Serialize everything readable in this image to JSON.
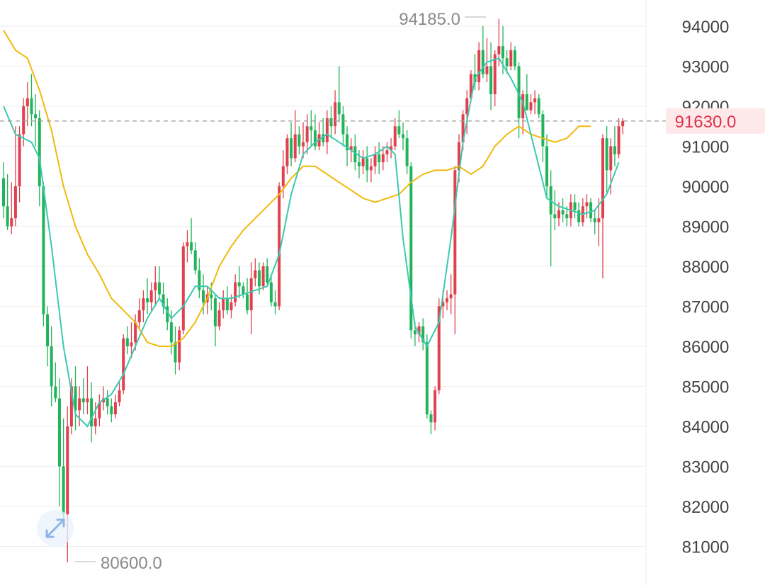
{
  "colors": {
    "up": "#e0414f",
    "down": "#22b45a",
    "ma_fast": "#3cc9b0",
    "ma_slow": "#f0b90b",
    "grid": "#eeeeee",
    "current_line": "#9a9a9a",
    "price_tag_bg": "#fde8ea",
    "price_tag_text": "#e0334a",
    "fullscreen_icon_bg": "#eaf2fc",
    "fullscreen_icon": "#8fb4e6"
  },
  "icons": {
    "fullscreen": "expand-arrows-icon"
  },
  "chart_data": {
    "type": "candlestick",
    "title": "",
    "xlabel": "",
    "ylabel": "",
    "ylim": [
      80500,
      94500
    ],
    "y_ticks": [
      "94000",
      "93000",
      "92000",
      "91000",
      "90000",
      "89000",
      "88000",
      "87000",
      "86000",
      "85000",
      "84000",
      "83000",
      "82000",
      "81000"
    ],
    "grid": true,
    "current_price": 91630,
    "current_price_label": "91630.0",
    "high_label": "94185.0",
    "low_label": "80600.0",
    "high_value": 94185,
    "low_value": 80600,
    "candles": [
      [
        90200,
        90600,
        89200,
        89500
      ],
      [
        89500,
        90300,
        88900,
        89000
      ],
      [
        89000,
        90100,
        88800,
        89200
      ],
      [
        89200,
        91500,
        89000,
        90000
      ],
      [
        90000,
        91500,
        89600,
        91300
      ],
      [
        91300,
        92200,
        91000,
        92000
      ],
      [
        92000,
        92600,
        91500,
        92200
      ],
      [
        92200,
        92800,
        91500,
        91800
      ],
      [
        91800,
        92300,
        91000,
        91700
      ],
      [
        91700,
        91900,
        89500,
        90000
      ],
      [
        90000,
        90100,
        86500,
        86800
      ],
      [
        86800,
        87000,
        85500,
        86000
      ],
      [
        86000,
        86500,
        84500,
        85000
      ],
      [
        85000,
        85600,
        84600,
        84700
      ],
      [
        84700,
        85200,
        82000,
        83000
      ],
      [
        83000,
        84200,
        81500,
        81800
      ],
      [
        81800,
        84500,
        80600,
        84000
      ],
      [
        84000,
        85200,
        83800,
        85000
      ],
      [
        85000,
        85500,
        83900,
        84400
      ],
      [
        84400,
        85000,
        84000,
        84700
      ],
      [
        84700,
        85200,
        84300,
        84600
      ],
      [
        84600,
        85500,
        84300,
        84700
      ],
      [
        84700,
        85100,
        83600,
        84000
      ],
      [
        84000,
        84600,
        83800,
        84200
      ],
      [
        84200,
        84800,
        84000,
        84600
      ],
      [
        84600,
        85000,
        84400,
        84700
      ],
      [
        84700,
        84900,
        84300,
        84500
      ],
      [
        84500,
        84700,
        84100,
        84300
      ],
      [
        84300,
        84800,
        84200,
        84600
      ],
      [
        84600,
        85100,
        84500,
        84900
      ],
      [
        84900,
        86300,
        84800,
        86200
      ],
      [
        86200,
        86500,
        85800,
        86000
      ],
      [
        86000,
        86600,
        85700,
        86100
      ],
      [
        86100,
        86800,
        85900,
        86600
      ],
      [
        86600,
        87200,
        86400,
        86900
      ],
      [
        86900,
        87400,
        86600,
        87200
      ],
      [
        87200,
        87700,
        86800,
        87100
      ],
      [
        87100,
        87600,
        86900,
        87400
      ],
      [
        87400,
        88000,
        87000,
        87600
      ],
      [
        87600,
        88000,
        87200,
        87300
      ],
      [
        87300,
        87600,
        86800,
        87000
      ],
      [
        87000,
        87200,
        86400,
        86600
      ],
      [
        86600,
        86900,
        85800,
        86100
      ],
      [
        86100,
        86500,
        85300,
        85600
      ],
      [
        85600,
        86500,
        85400,
        86400
      ],
      [
        86400,
        88600,
        86300,
        88500
      ],
      [
        88500,
        88900,
        88100,
        88600
      ],
      [
        88600,
        89200,
        88300,
        88400
      ],
      [
        88400,
        88600,
        87800,
        87900
      ],
      [
        87900,
        88200,
        87200,
        87400
      ],
      [
        87400,
        87800,
        86800,
        87100
      ],
      [
        87100,
        87500,
        86800,
        87300
      ],
      [
        87300,
        87600,
        86900,
        87200
      ],
      [
        87200,
        87300,
        86000,
        86500
      ],
      [
        86500,
        87100,
        86400,
        86900
      ],
      [
        86900,
        87400,
        86700,
        87200
      ],
      [
        87200,
        87500,
        86800,
        86900
      ],
      [
        86900,
        87300,
        86700,
        87100
      ],
      [
        87100,
        87800,
        87000,
        87600
      ],
      [
        87600,
        88000,
        87200,
        87500
      ],
      [
        87500,
        87600,
        87200,
        87300
      ],
      [
        87300,
        87700,
        86800,
        86900
      ],
      [
        86900,
        88100,
        86300,
        87700
      ],
      [
        87700,
        88200,
        87500,
        87900
      ],
      [
        87900,
        88100,
        87300,
        87500
      ],
      [
        87500,
        88100,
        87400,
        88000
      ],
      [
        88000,
        88200,
        87500,
        87600
      ],
      [
        87600,
        87800,
        87000,
        87100
      ],
      [
        87100,
        87400,
        86800,
        87000
      ],
      [
        87000,
        90100,
        86900,
        90000
      ],
      [
        90000,
        90900,
        89700,
        90500
      ],
      [
        90500,
        91300,
        90300,
        91200
      ],
      [
        91200,
        91600,
        90500,
        90700
      ],
      [
        90700,
        91900,
        90600,
        91300
      ],
      [
        91300,
        91500,
        90800,
        91000
      ],
      [
        91000,
        91600,
        90700,
        91100
      ],
      [
        91100,
        91800,
        90800,
        91500
      ],
      [
        91500,
        91900,
        91000,
        91400
      ],
      [
        91400,
        91800,
        90900,
        91000
      ],
      [
        91000,
        91600,
        90900,
        91300
      ],
      [
        91300,
        91700,
        91000,
        91100
      ],
      [
        91100,
        91900,
        90800,
        91700
      ],
      [
        91700,
        92000,
        91200,
        91500
      ],
      [
        91500,
        92400,
        91300,
        92100
      ],
      [
        92100,
        93000,
        91600,
        91800
      ],
      [
        91800,
        92000,
        91000,
        91300
      ],
      [
        91300,
        91500,
        90500,
        90900
      ],
      [
        90900,
        91200,
        90600,
        91000
      ],
      [
        91000,
        91300,
        90400,
        90600
      ],
      [
        90600,
        90900,
        90200,
        90500
      ],
      [
        90500,
        90900,
        90300,
        90700
      ],
      [
        90700,
        91000,
        90100,
        90400
      ],
      [
        90400,
        90700,
        90100,
        90500
      ],
      [
        90500,
        91000,
        90300,
        90800
      ],
      [
        90800,
        91100,
        90300,
        90600
      ],
      [
        90600,
        91000,
        90400,
        90800
      ],
      [
        90800,
        91100,
        90600,
        90900
      ],
      [
        90900,
        91200,
        90700,
        91000
      ],
      [
        91000,
        91700,
        90900,
        91500
      ],
      [
        91500,
        91900,
        91200,
        91300
      ],
      [
        91300,
        91600,
        90900,
        91200
      ],
      [
        91200,
        91400,
        90300,
        90500
      ],
      [
        90500,
        90600,
        86200,
        86400
      ],
      [
        86400,
        86600,
        86000,
        86300
      ],
      [
        86300,
        86600,
        86100,
        86500
      ],
      [
        86500,
        86700,
        85900,
        86100
      ],
      [
        86100,
        86300,
        84200,
        84300
      ],
      [
        84300,
        84400,
        83800,
        84100
      ],
      [
        84100,
        85000,
        83900,
        84900
      ],
      [
        84900,
        87200,
        84800,
        87000
      ],
      [
        87000,
        87400,
        86700,
        87100
      ],
      [
        87100,
        87400,
        86900,
        87200
      ],
      [
        87200,
        87800,
        86800,
        87300
      ],
      [
        87300,
        90500,
        86300,
        90400
      ],
      [
        90400,
        91300,
        90100,
        91100
      ],
      [
        91100,
        91900,
        90900,
        91800
      ],
      [
        91800,
        92400,
        91300,
        92200
      ],
      [
        92200,
        92900,
        92100,
        92800
      ],
      [
        92800,
        93300,
        92400,
        92600
      ],
      [
        92600,
        93600,
        92400,
        93400
      ],
      [
        93400,
        94000,
        92700,
        92800
      ],
      [
        92800,
        93700,
        92600,
        93000
      ],
      [
        93000,
        93600,
        91900,
        92300
      ],
      [
        92300,
        93400,
        92000,
        93300
      ],
      [
        93300,
        94185,
        93000,
        93500
      ],
      [
        93500,
        94000,
        92800,
        93200
      ],
      [
        93200,
        93400,
        92800,
        93000
      ],
      [
        93000,
        93600,
        92900,
        93400
      ],
      [
        93400,
        93500,
        92900,
        93000
      ],
      [
        93000,
        93100,
        91200,
        91700
      ],
      [
        91700,
        92400,
        91300,
        92300
      ],
      [
        92300,
        92800,
        91900,
        91900
      ],
      [
        91900,
        92300,
        91800,
        92100
      ],
      [
        92100,
        92400,
        91800,
        92200
      ],
      [
        92200,
        92300,
        91700,
        91800
      ],
      [
        91800,
        91900,
        90600,
        91000
      ],
      [
        91000,
        91300,
        89700,
        90000
      ],
      [
        90000,
        90400,
        88000,
        89300
      ],
      [
        89300,
        89900,
        88900,
        89200
      ],
      [
        89200,
        89600,
        89000,
        89400
      ],
      [
        89400,
        89700,
        89100,
        89300
      ],
      [
        89300,
        89500,
        89000,
        89200
      ],
      [
        89200,
        89800,
        89000,
        89600
      ],
      [
        89600,
        89800,
        89200,
        89400
      ],
      [
        89400,
        89600,
        89000,
        89100
      ],
      [
        89100,
        89700,
        89000,
        89500
      ],
      [
        89500,
        89800,
        89200,
        89600
      ],
      [
        89600,
        89700,
        89100,
        89200
      ],
      [
        89200,
        89400,
        88800,
        89100
      ],
      [
        89100,
        89700,
        88500,
        89200
      ],
      [
        89200,
        91300,
        87700,
        91200
      ],
      [
        91200,
        91500,
        89800,
        90400
      ],
      [
        90400,
        91200,
        89800,
        91000
      ],
      [
        91000,
        91500,
        90500,
        90800
      ],
      [
        90800,
        91700,
        90700,
        91500
      ],
      [
        91500,
        91700,
        91300,
        91630
      ]
    ],
    "ma_fast": [
      [
        0,
        92000
      ],
      [
        3,
        91300
      ],
      [
        7,
        91100
      ],
      [
        9,
        90700
      ],
      [
        12,
        88500
      ],
      [
        15,
        86000
      ],
      [
        18,
        84300
      ],
      [
        21,
        84000
      ],
      [
        24,
        84600
      ],
      [
        27,
        84800
      ],
      [
        30,
        85300
      ],
      [
        33,
        86000
      ],
      [
        36,
        86700
      ],
      [
        39,
        87200
      ],
      [
        42,
        86700
      ],
      [
        45,
        87000
      ],
      [
        48,
        87500
      ],
      [
        51,
        87500
      ],
      [
        54,
        87200
      ],
      [
        57,
        87200
      ],
      [
        60,
        87300
      ],
      [
        63,
        87400
      ],
      [
        66,
        87500
      ],
      [
        69,
        88300
      ],
      [
        72,
        89800
      ],
      [
        75,
        90800
      ],
      [
        78,
        91100
      ],
      [
        81,
        91300
      ],
      [
        84,
        91100
      ],
      [
        87,
        90900
      ],
      [
        90,
        90700
      ],
      [
        93,
        90800
      ],
      [
        96,
        91000
      ],
      [
        98,
        90800
      ],
      [
        100,
        88700
      ],
      [
        103,
        86500
      ],
      [
        106,
        86000
      ],
      [
        109,
        86600
      ],
      [
        112,
        88700
      ],
      [
        115,
        91100
      ],
      [
        118,
        92700
      ],
      [
        121,
        93100
      ],
      [
        124,
        93200
      ],
      [
        127,
        92700
      ],
      [
        130,
        92100
      ],
      [
        133,
        90900
      ],
      [
        136,
        89700
      ],
      [
        139,
        89500
      ],
      [
        142,
        89400
      ],
      [
        145,
        89300
      ],
      [
        148,
        89400
      ],
      [
        151,
        89800
      ],
      [
        154,
        90600
      ]
    ],
    "ma_slow": [
      [
        0,
        93900
      ],
      [
        3,
        93400
      ],
      [
        6,
        93200
      ],
      [
        9,
        92400
      ],
      [
        12,
        91400
      ],
      [
        15,
        90000
      ],
      [
        18,
        89000
      ],
      [
        21,
        88300
      ],
      [
        24,
        87800
      ],
      [
        27,
        87200
      ],
      [
        30,
        86900
      ],
      [
        33,
        86600
      ],
      [
        36,
        86100
      ],
      [
        39,
        86000
      ],
      [
        42,
        86000
      ],
      [
        45,
        86200
      ],
      [
        48,
        86600
      ],
      [
        51,
        87200
      ],
      [
        54,
        88000
      ],
      [
        57,
        88500
      ],
      [
        60,
        88900
      ],
      [
        63,
        89200
      ],
      [
        66,
        89500
      ],
      [
        69,
        89800
      ],
      [
        72,
        90200
      ],
      [
        75,
        90500
      ],
      [
        78,
        90500
      ],
      [
        81,
        90300
      ],
      [
        84,
        90100
      ],
      [
        87,
        89900
      ],
      [
        90,
        89700
      ],
      [
        93,
        89600
      ],
      [
        96,
        89700
      ],
      [
        99,
        89800
      ],
      [
        102,
        90100
      ],
      [
        105,
        90300
      ],
      [
        108,
        90400
      ],
      [
        111,
        90400
      ],
      [
        114,
        90500
      ],
      [
        117,
        90300
      ],
      [
        120,
        90500
      ],
      [
        123,
        91000
      ],
      [
        126,
        91300
      ],
      [
        129,
        91500
      ],
      [
        132,
        91300
      ],
      [
        135,
        91200
      ],
      [
        138,
        91100
      ],
      [
        141,
        91200
      ],
      [
        144,
        91500
      ],
      [
        147,
        91500
      ]
    ]
  }
}
